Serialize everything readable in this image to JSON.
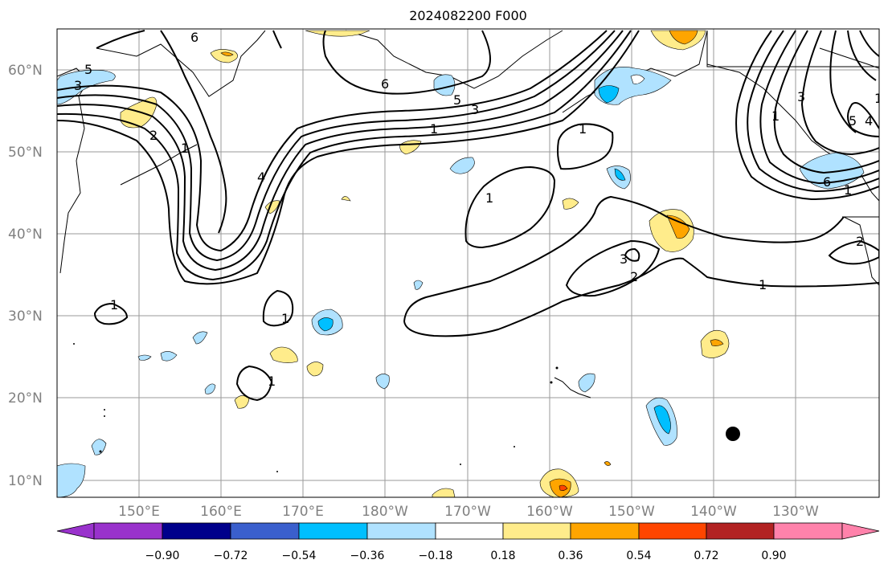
{
  "title": "2024082200 F000",
  "map": {
    "lat_labels": [
      "60°N",
      "50°N",
      "40°N",
      "30°N",
      "20°N",
      "10°N"
    ],
    "lon_labels": [
      "150°E",
      "160°E",
      "170°E",
      "180°W",
      "170°W",
      "160°W",
      "150°W",
      "140°W",
      "130°W"
    ],
    "grid": true,
    "contour_color": "#000000",
    "contour_labels": [
      "6",
      "5",
      "4",
      "3",
      "2",
      "1",
      "6",
      "5",
      "3",
      "1",
      "1",
      "1",
      "1",
      "1",
      "1",
      "1",
      "1",
      "3",
      "2",
      "1",
      "2",
      "5",
      "4",
      "6",
      "1",
      "3"
    ],
    "marker": "black-dot"
  },
  "colorbar": {
    "ticks": [
      "−0.90",
      "−0.72",
      "−0.54",
      "−0.36",
      "−0.18",
      "0.18",
      "0.36",
      "0.54",
      "0.72",
      "0.90"
    ],
    "colors": [
      "#9932cc",
      "#00008b",
      "#3a5fcd",
      "#00bfff",
      "#b0e2ff",
      "#ffffff",
      "#ffec8b",
      "#ffa500",
      "#ff4500",
      "#b22222",
      "#ff82ab"
    ]
  }
}
